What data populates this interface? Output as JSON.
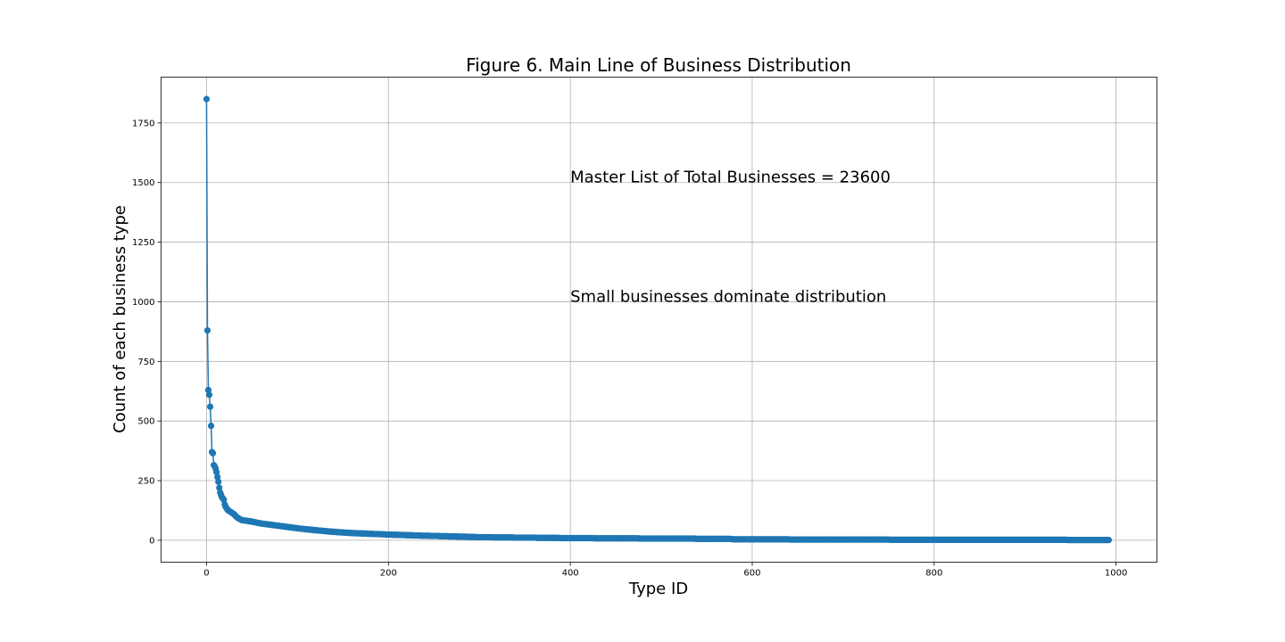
{
  "chart_data": {
    "type": "line",
    "title": "Figure 6. Main Line of Business Distribution",
    "xlabel": "Type ID",
    "ylabel": "Count of each business type",
    "xlim": [
      -50,
      1045
    ],
    "ylim": [
      -92,
      1942
    ],
    "xticks": [
      0,
      200,
      400,
      600,
      800,
      1000
    ],
    "yticks": [
      0,
      250,
      500,
      750,
      1000,
      1250,
      1500,
      1750
    ],
    "grid": true,
    "marker": "circle",
    "series_color": "#1f77b4",
    "annotations": [
      {
        "text": "Master List of Total Businesses =  23600",
        "x": 400,
        "y": 1500
      },
      {
        "text": "Small businesses dominate distribution",
        "x": 400,
        "y": 1000
      }
    ],
    "series": [
      {
        "n_points": 993,
        "x_start": 0,
        "x_step": 1,
        "head_values": [
          1850,
          880,
          630,
          610,
          560,
          480,
          370,
          365,
          315,
          310,
          300,
          285,
          265,
          245,
          220,
          200,
          190,
          180,
          175,
          170,
          150,
          140,
          135,
          128,
          125,
          122,
          120,
          118,
          115,
          112,
          110,
          106,
          102,
          98,
          95,
          92,
          90,
          88,
          86,
          84
        ],
        "tail_anchors": [
          [
            40,
            84
          ],
          [
            50,
            78
          ],
          [
            60,
            70
          ],
          [
            70,
            65
          ],
          [
            80,
            60
          ],
          [
            90,
            55
          ],
          [
            100,
            50
          ],
          [
            120,
            42
          ],
          [
            140,
            35
          ],
          [
            160,
            30
          ],
          [
            180,
            27
          ],
          [
            200,
            24
          ],
          [
            230,
            20
          ],
          [
            260,
            17
          ],
          [
            300,
            13
          ],
          [
            350,
            11
          ],
          [
            400,
            9
          ],
          [
            450,
            8
          ],
          [
            500,
            7
          ],
          [
            575,
            6
          ],
          [
            580,
            4
          ],
          [
            700,
            3
          ],
          [
            800,
            2
          ],
          [
            900,
            2
          ],
          [
            992,
            1
          ]
        ]
      }
    ]
  }
}
